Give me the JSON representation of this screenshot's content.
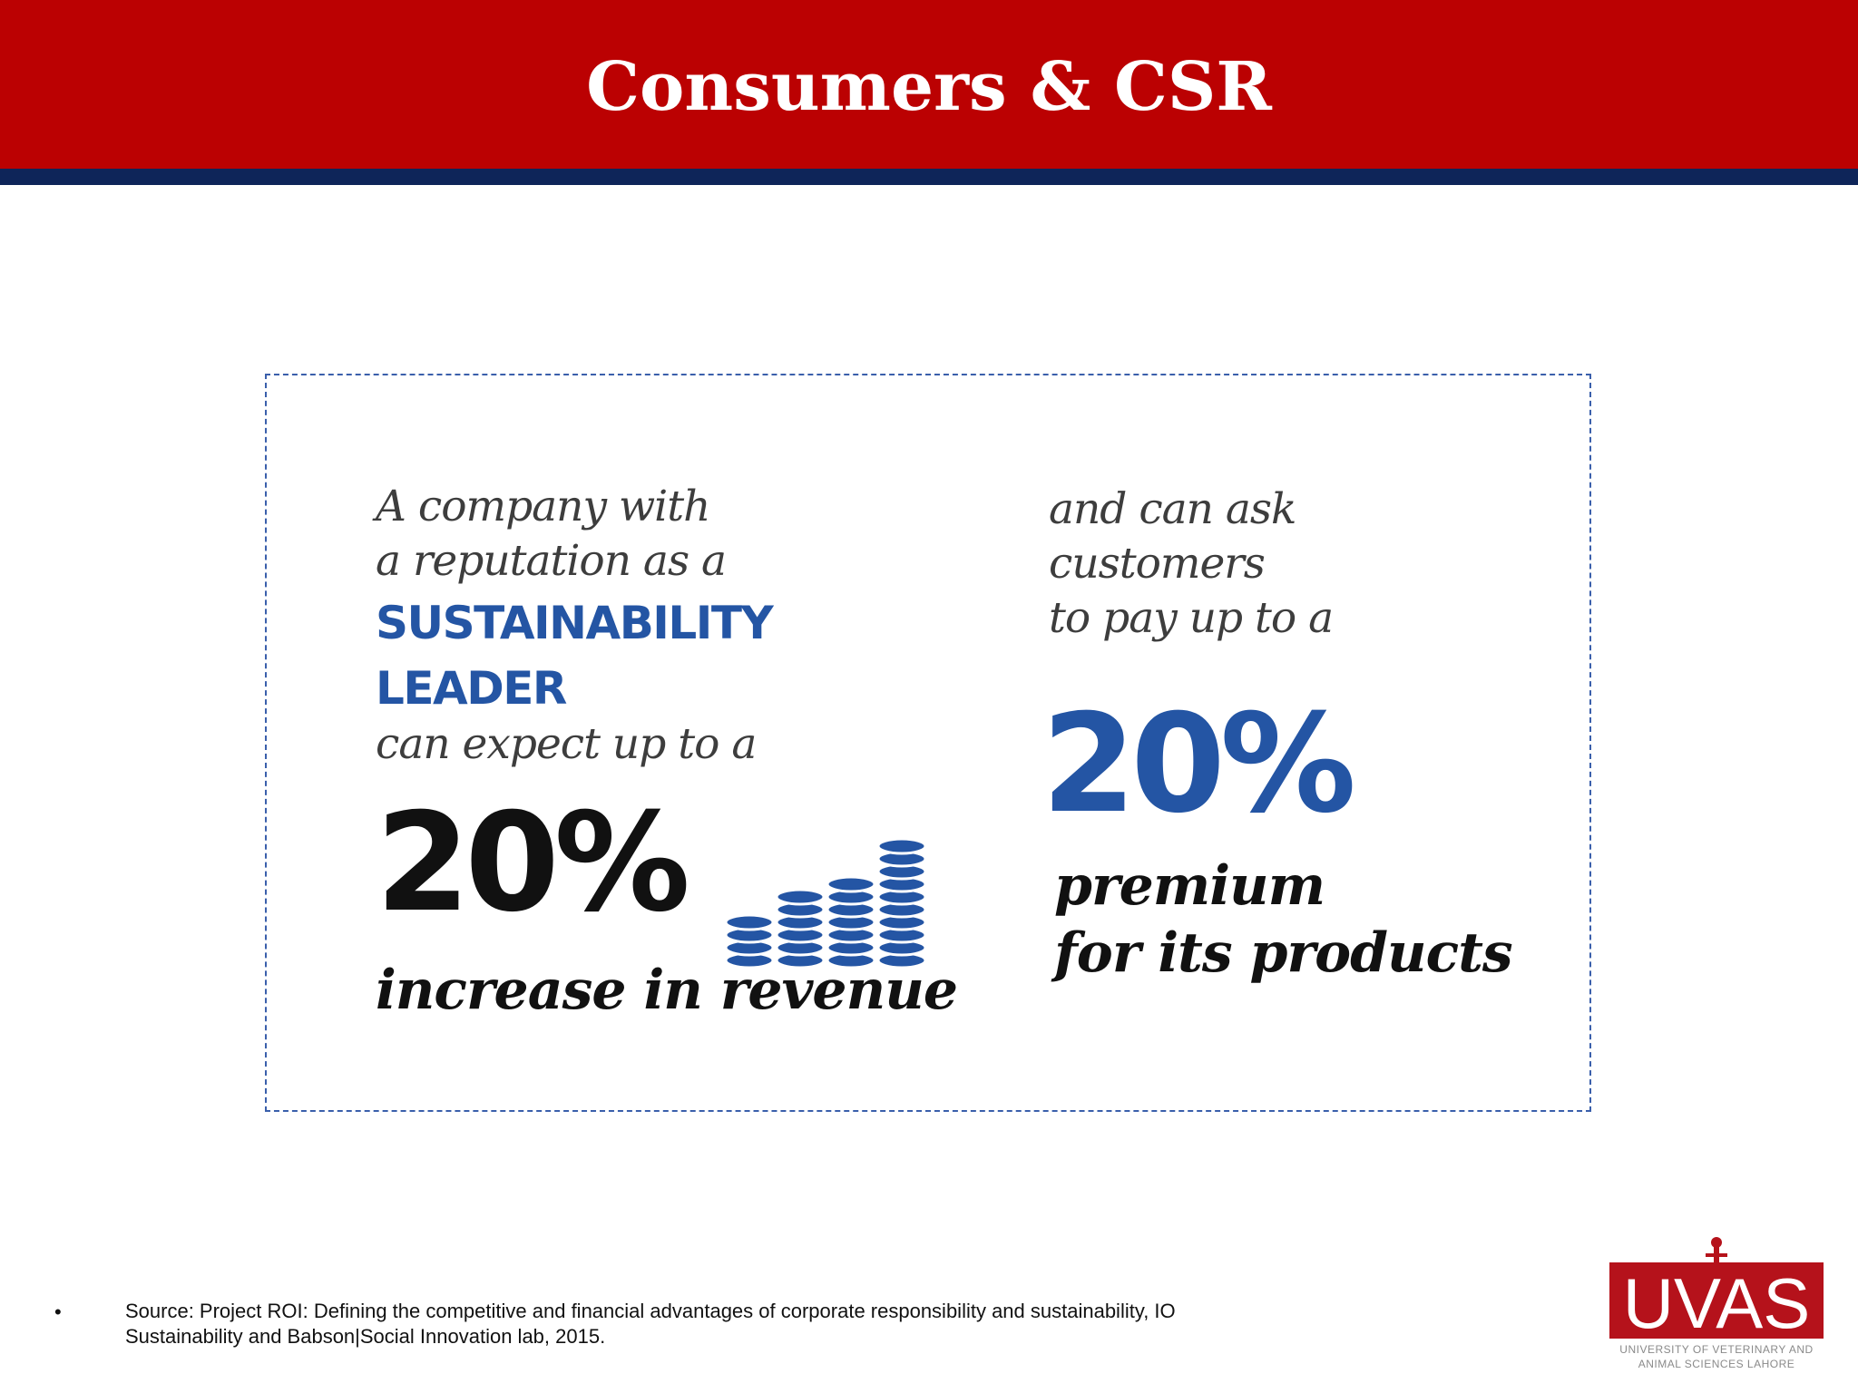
{
  "header": {
    "title": "Consumers & CSR"
  },
  "infographic": {
    "left": {
      "intro_line1": "A company with",
      "intro_line2": "a reputation as a",
      "leader": "SUSTAINABILITY LEADER",
      "expect": "can expect up to a",
      "percent": "20%",
      "outcome": "increase in revenue",
      "icon": "coin-stacks-icon"
    },
    "right": {
      "intro_line1": "and can ask customers",
      "intro_line2": "to pay up to a",
      "percent": "20%",
      "outcome_line1": "premium",
      "outcome_line2": "for its products"
    }
  },
  "footer": {
    "bullet": "•",
    "source": "Source: Project ROI: Defining the competitive and financial advantages of corporate responsibility and sustainability, IO Sustainability and Babson|Social Innovation lab, 2015."
  },
  "logo": {
    "text": "UVAS",
    "caption_line1": "UNIVERSITY OF VETERINARY AND",
    "caption_line2": "ANIMAL SCIENCES LAHORE"
  },
  "colors": {
    "header_red": "#bb0102",
    "header_navy": "#0e2559",
    "accent_blue": "#2455a4",
    "logo_red": "#b5121b"
  }
}
